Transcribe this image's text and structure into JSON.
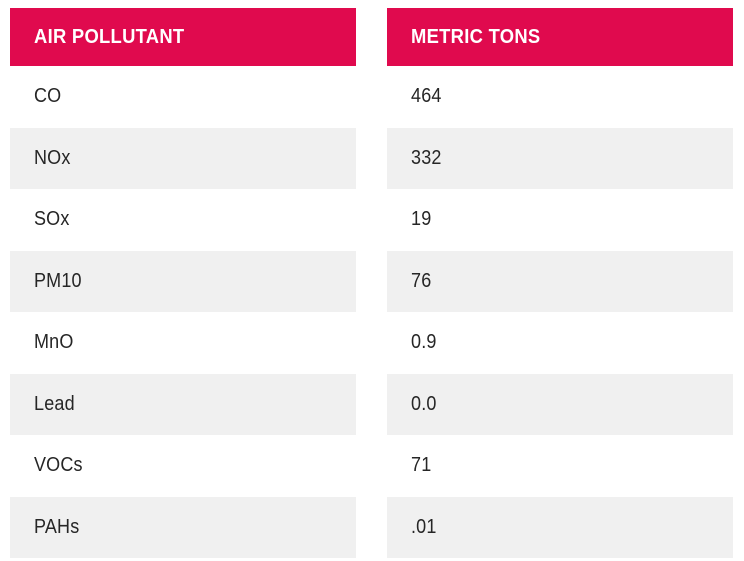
{
  "colors": {
    "header_bg": "#E00A4E",
    "header_text": "#FFFFFF",
    "row_bg": "#FFFFFF",
    "row_alt_bg": "#F0F0F0",
    "body_text": "#262626",
    "page_bg": "#FFFFFF"
  },
  "table": {
    "columns": [
      {
        "header": "AIR POLLUTANT"
      },
      {
        "header": "METRIC TONS"
      }
    ],
    "rows": [
      [
        "CO",
        "464"
      ],
      [
        "NOx",
        "332"
      ],
      [
        "SOx",
        "19"
      ],
      [
        "PM10",
        "76"
      ],
      [
        "MnO",
        "0.9"
      ],
      [
        "Lead",
        "0.0"
      ],
      [
        "VOCs",
        "71"
      ],
      [
        "PAHs",
        ".01"
      ]
    ]
  },
  "chart_data": {
    "type": "table",
    "title": "",
    "columns": [
      "AIR POLLUTANT",
      "METRIC TONS"
    ],
    "rows": [
      {
        "pollutant": "CO",
        "metric_tons": "464"
      },
      {
        "pollutant": "NOx",
        "metric_tons": "332"
      },
      {
        "pollutant": "SOx",
        "metric_tons": "19"
      },
      {
        "pollutant": "PM10",
        "metric_tons": "76"
      },
      {
        "pollutant": "MnO",
        "metric_tons": "0.9"
      },
      {
        "pollutant": "Lead",
        "metric_tons": "0.0"
      },
      {
        "pollutant": "VOCs",
        "metric_tons": "71"
      },
      {
        "pollutant": "PAHs",
        "metric_tons": ".01"
      }
    ],
    "layout": {
      "alternating_row_shading": true,
      "two_separate_column_blocks": true,
      "header_style": "bold uppercase white on crimson"
    }
  }
}
